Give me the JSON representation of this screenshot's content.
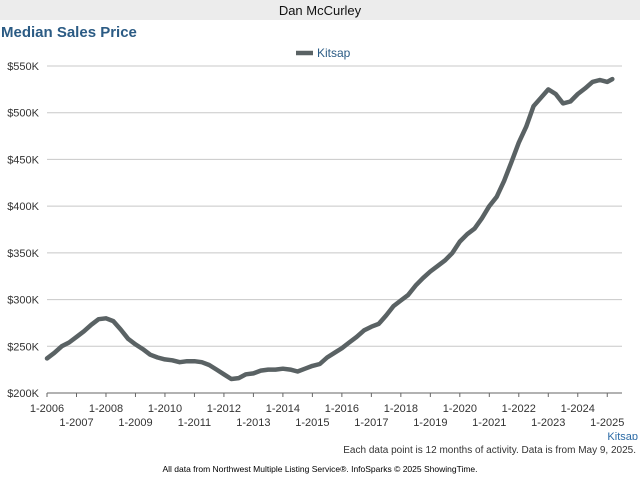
{
  "header": {
    "title": "Dan McCurley"
  },
  "chart_data": {
    "type": "line",
    "title": "Median Sales Price",
    "xlabel": "",
    "ylabel": "",
    "xlim": [
      2006,
      2025.5
    ],
    "ylim": [
      200000,
      550000
    ],
    "yticks": [
      200000,
      250000,
      300000,
      350000,
      400000,
      450000,
      500000,
      550000
    ],
    "ytick_labels": [
      "$200K",
      "$250K",
      "$300K",
      "$350K",
      "$400K",
      "$450K",
      "$500K",
      "$550K"
    ],
    "xticks_upper": [
      "1-2006",
      "1-2008",
      "1-2010",
      "1-2012",
      "1-2014",
      "1-2016",
      "1-2018",
      "1-2020",
      "1-2022",
      "1-2024"
    ],
    "xticks_lower": [
      "1-2007",
      "1-2009",
      "1-2011",
      "1-2013",
      "1-2015",
      "1-2017",
      "1-2019",
      "1-2021",
      "1-2023",
      "1-2025"
    ],
    "grid": true,
    "legend_position": "top-center",
    "series": [
      {
        "name": "Kitsap",
        "color": "#5a6264",
        "x": [
          2006.0,
          2006.25,
          2006.5,
          2006.75,
          2007.0,
          2007.25,
          2007.5,
          2007.75,
          2008.0,
          2008.25,
          2008.5,
          2008.75,
          2009.0,
          2009.25,
          2009.5,
          2009.75,
          2010.0,
          2010.25,
          2010.5,
          2010.75,
          2011.0,
          2011.25,
          2011.5,
          2011.75,
          2012.0,
          2012.25,
          2012.5,
          2012.75,
          2013.0,
          2013.25,
          2013.5,
          2013.75,
          2014.0,
          2014.25,
          2014.5,
          2014.75,
          2015.0,
          2015.25,
          2015.5,
          2015.75,
          2016.0,
          2016.25,
          2016.5,
          2016.75,
          2017.0,
          2017.25,
          2017.5,
          2017.75,
          2018.0,
          2018.25,
          2018.5,
          2018.75,
          2019.0,
          2019.25,
          2019.5,
          2019.75,
          2020.0,
          2020.25,
          2020.5,
          2020.75,
          2021.0,
          2021.25,
          2021.5,
          2021.75,
          2022.0,
          2022.25,
          2022.5,
          2022.75,
          2023.0,
          2023.25,
          2023.5,
          2023.75,
          2024.0,
          2024.25,
          2024.5,
          2024.75,
          2025.0,
          2025.17
        ],
        "values": [
          237000,
          243000,
          250000,
          254000,
          260000,
          266000,
          273000,
          279000,
          280000,
          277000,
          268000,
          258000,
          252000,
          247000,
          241000,
          238000,
          236000,
          235000,
          233000,
          234000,
          234000,
          233000,
          230000,
          225000,
          220000,
          215000,
          216000,
          220000,
          221000,
          224000,
          225000,
          225000,
          226000,
          225000,
          223000,
          226000,
          229000,
          231000,
          238000,
          243000,
          248000,
          254000,
          260000,
          267000,
          271000,
          274000,
          283000,
          293000,
          299000,
          305000,
          315000,
          323000,
          330000,
          336000,
          342000,
          350000,
          362000,
          370000,
          376000,
          387000,
          400000,
          410000,
          427000,
          447000,
          468000,
          485000,
          507000,
          516000,
          525000,
          520000,
          510000,
          512000,
          520000,
          526000,
          533000,
          535000,
          533000,
          536000
        ]
      }
    ]
  },
  "footnote": "Each data point is 12 months of activity. Data is from May 9, 2025.",
  "area_label": "Kitsap",
  "copyright": "All data from Northwest Multiple Listing Service®. InfoSparks © 2025 ShowingTime."
}
